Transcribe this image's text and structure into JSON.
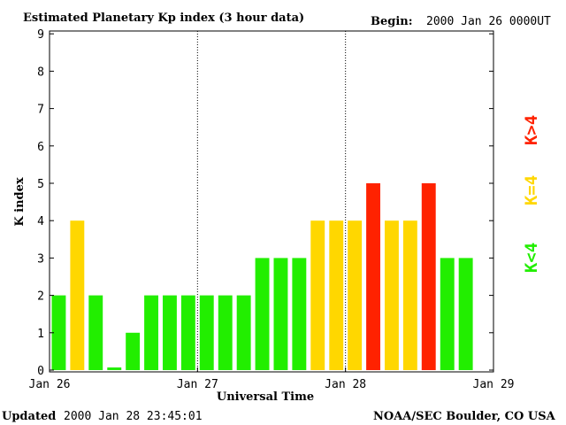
{
  "header": {
    "title": "Estimated Planetary Kp index (3 hour data)",
    "begin_label": "Begin:",
    "begin_value": "2000 Jan 26 0000UT"
  },
  "footer": {
    "updated_label": "Updated",
    "updated_value": "2000 Jan 28 23:45:01",
    "source": "NOAA/SEC Boulder, CO USA"
  },
  "chart_data": {
    "type": "bar",
    "xlabel": "Universal Time",
    "ylabel": "K index",
    "ylim": [
      0,
      9
    ],
    "y_ticks": [
      "0",
      "1",
      "2",
      "3",
      "4",
      "5",
      "6",
      "7",
      "8",
      "9"
    ],
    "x_tick_labels": [
      "Jan 26",
      "Jan 27",
      "Jan 28",
      "Jan 29"
    ],
    "day_separators": [
      "Jan 27",
      "Jan 28"
    ],
    "interval_hours": 3,
    "slots_total": 24,
    "values": [
      2,
      4,
      2,
      0,
      1,
      2,
      2,
      2,
      2,
      2,
      2,
      3,
      3,
      3,
      4,
      4,
      4,
      5,
      4,
      4,
      5,
      3,
      3
    ],
    "legend": [
      {
        "label": "K<4",
        "color": "#22ee00"
      },
      {
        "label": "K=4",
        "color": "#ffd700"
      },
      {
        "label": "K>4",
        "color": "#ff2200"
      }
    ],
    "colors": {
      "low": "#22ee00",
      "equal": "#ffd700",
      "high": "#ff2200"
    }
  }
}
